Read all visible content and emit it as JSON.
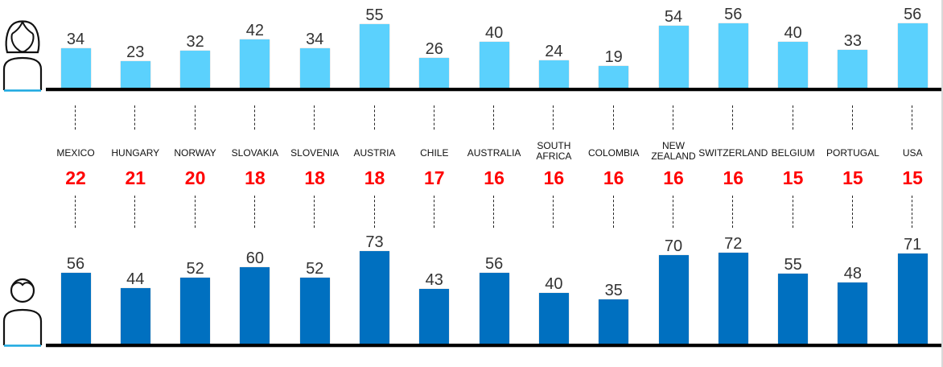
{
  "chart_data": {
    "type": "bar",
    "title": "",
    "layout": "two mirrored bar rows (female top, male bottom) with country labels and red rank values between",
    "categories": [
      "MEXICO",
      "HUNGARY",
      "NORWAY",
      "SLOVAKIA",
      "SLOVENIA",
      "AUSTRIA",
      "CHILE",
      "AUSTRALIA",
      "SOUTH AFRICA",
      "COLOMBIA",
      "NEW ZEALAND",
      "SWITZERLAND",
      "BELGIUM",
      "PORTUGAL",
      "USA"
    ],
    "series": [
      {
        "name": "female",
        "icon": "female-person-icon",
        "color": "#5BD1FD",
        "values": [
          34,
          23,
          32,
          42,
          34,
          55,
          26,
          40,
          24,
          19,
          54,
          56,
          40,
          33,
          56
        ]
      },
      {
        "name": "male",
        "icon": "male-person-icon",
        "color": "#0070C0",
        "values": [
          56,
          44,
          52,
          60,
          52,
          73,
          43,
          56,
          40,
          35,
          70,
          72,
          55,
          48,
          71
        ]
      }
    ],
    "middle_values": {
      "color": "#FF0000",
      "values": [
        22,
        21,
        20,
        18,
        18,
        18,
        17,
        16,
        16,
        16,
        16,
        16,
        15,
        15,
        15
      ]
    },
    "grid": false,
    "xlabel": "",
    "ylabel": ""
  },
  "colors": {
    "female": "#5BD1FD",
    "male": "#0070C0",
    "middle": "#FF0000",
    "axis": "#000000",
    "icon_underline": "#1BA8E0"
  }
}
